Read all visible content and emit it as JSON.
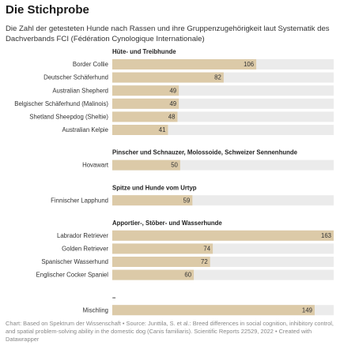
{
  "chart_data": {
    "type": "bar",
    "title": "Die Stichprobe",
    "subtitle": "Die Zahl der getesteten Hunde nach Rassen und ihre Gruppenzugehörigkeit laut Systematik des Dachverbands FCI (Fédération Cynologique Internationale)",
    "color": "#dccaa8",
    "background_color": "#ebebeb",
    "groups": [
      {
        "name": "Hüte- und Treibhunde",
        "categories": [
          "Border Collie",
          "Deutscher Schäferhund",
          "Australian Shepherd",
          "Belgischer Schäferhund (Malinois)",
          "Shetland Sheepdog (Sheltie)",
          "Australian Kelpie"
        ],
        "values": [
          106,
          82,
          49,
          49,
          48,
          41
        ]
      },
      {
        "name": "Pinscher und Schnauzer, Molossoide, Schweizer Sennenhunde",
        "categories": [
          "Hovawart"
        ],
        "values": [
          50
        ]
      },
      {
        "name": "Spitze und Hunde vom Urtyp",
        "categories": [
          "Finnischer Lapphund"
        ],
        "values": [
          59
        ]
      },
      {
        "name": "Apportier-, Stöber- und Wasserhunde",
        "categories": [
          "Labrador Retriever",
          "Golden Retriever",
          "Spanischer Wasserhund",
          "Englischer Cocker Spaniel"
        ],
        "values": [
          163,
          74,
          72,
          60
        ]
      },
      {
        "name": "–",
        "categories": [
          "Mischling"
        ],
        "values": [
          149
        ]
      }
    ],
    "source": "Chart: Based on Spektrum der Wissenschaft • Source: Junttila, S. et al.: Breed differences in social cognition, inhibitory control, and spatial problem-solving ability in the domestic dog (Canis familiaris). Scientific Reports 22529, 2022 • Created with Datawrapper"
  }
}
